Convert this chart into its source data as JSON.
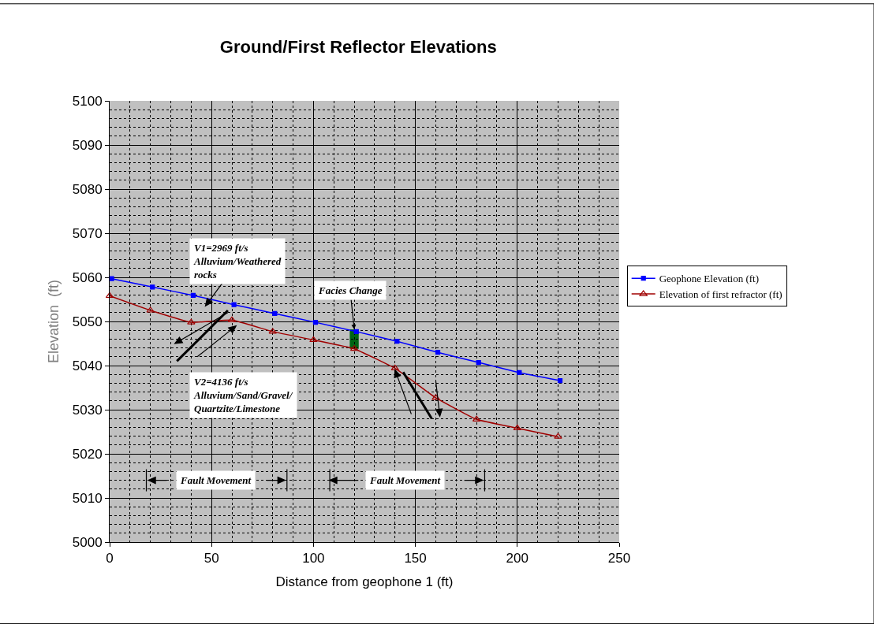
{
  "chart_data": {
    "type": "line",
    "title": "Ground/First Reflector Elevations",
    "xlabel": "Distance from geophone 1 (ft)",
    "ylabel": "Elevation  (ft)",
    "xlim": [
      0,
      250
    ],
    "xticks": [
      0,
      50,
      100,
      150,
      200,
      250
    ],
    "ylim": [
      5000,
      5100
    ],
    "yticks": [
      5000,
      5010,
      5020,
      5030,
      5040,
      5050,
      5060,
      5070,
      5080,
      5090,
      5100
    ],
    "grid": true,
    "legend": "right",
    "series": [
      {
        "name": "Geophone Elevation (ft)",
        "color": "#0000ff",
        "marker": "square",
        "x": [
          1,
          21,
          41,
          61,
          81,
          101,
          121,
          141,
          161,
          181,
          201,
          221
        ],
        "values": [
          5059.7,
          5057.8,
          5055.9,
          5053.8,
          5051.8,
          5049.8,
          5047.7,
          5045.5,
          5043.0,
          5040.7,
          5038.4,
          5036.6
        ]
      },
      {
        "name": "Elevation of first refractor (ft)",
        "color": "#a00000",
        "marker": "triangle",
        "x": [
          0,
          20,
          40,
          60,
          80,
          100,
          120,
          140,
          160,
          180,
          200,
          220
        ],
        "values": [
          5055.8,
          5052.5,
          5049.8,
          5050.3,
          5047.7,
          5045.8,
          5043.8,
          5039.4,
          5032.7,
          5027.8,
          5025.8,
          5023.9
        ]
      }
    ],
    "annotations": [
      "V1=2969 ft/s\nAlluvium/Weathered\nrocks",
      {
        "text": "Facies Change",
        "x": 120,
        "y": 5048.2
      },
      "V2=4136 ft/s\nAlluvium/Sand/Gravel/\nQuartzite/Limestone",
      "Fault Movement",
      "Fault Movement"
    ]
  }
}
